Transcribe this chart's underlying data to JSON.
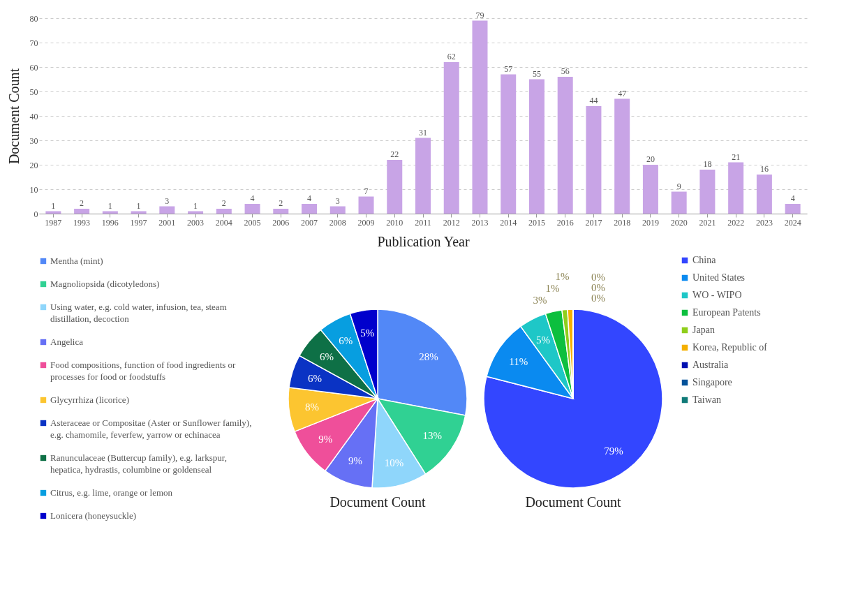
{
  "chart_data": [
    {
      "type": "bar",
      "xlabel": "Publication Year",
      "ylabel": "Document Count",
      "categories": [
        "1987",
        "1993",
        "1996",
        "1997",
        "2001",
        "2003",
        "2004",
        "2005",
        "2006",
        "2007",
        "2008",
        "2009",
        "2010",
        "2011",
        "2012",
        "2013",
        "2014",
        "2015",
        "2016",
        "2017",
        "2018",
        "2019",
        "2020",
        "2021",
        "2022",
        "2023",
        "2024"
      ],
      "values": [
        1,
        2,
        1,
        1,
        3,
        1,
        2,
        4,
        2,
        4,
        3,
        7,
        22,
        31,
        62,
        79,
        57,
        55,
        56,
        44,
        47,
        20,
        9,
        18,
        21,
        16,
        4
      ],
      "color": "#c8a4e6",
      "ylim": [
        0,
        80
      ],
      "yticks": [
        0,
        10,
        20,
        30,
        40,
        50,
        60,
        70,
        80
      ],
      "grid": "y",
      "data_labels": true
    },
    {
      "type": "pie",
      "title": "Document Count",
      "legend": "left",
      "categories": [
        "Mentha (mint)",
        "Magnoliopsida (dicotyledons)",
        "Using water, e.g. cold water, infusion, tea, steam distillation, decoction",
        "Angelica",
        "Food compositions, function of food ingredients or processes for food or foodstuffs",
        "Glycyrrhiza (licorice)",
        "Asteraceae or Compositae (Aster or Sunflower family), e.g. chamomile, feverfew, yarrow or echinacea",
        "Ranunculaceae (Buttercup family), e.g. larkspur, hepatica, hydrastis, columbine or goldenseal",
        "Citrus, e.g. lime, orange or lemon",
        "Lonicera (honeysuckle)"
      ],
      "values": [
        28,
        13,
        10,
        9,
        9,
        8,
        6,
        6,
        6,
        5
      ],
      "value_labels": [
        "28%",
        "13%",
        "10%",
        "9%",
        "9%",
        "8%",
        "6%",
        "6%",
        "6%",
        "5%"
      ],
      "colors": [
        "#5288f7",
        "#30d193",
        "#8fd6fb",
        "#6670f5",
        "#ef4f9a",
        "#fcc530",
        "#0a33c4",
        "#0e7046",
        "#079ee0",
        "#0000cc"
      ]
    },
    {
      "type": "pie",
      "title": "Document Count",
      "legend": "right",
      "categories": [
        "China",
        "United States",
        "WO - WIPO",
        "European Patents",
        "Japan",
        "Korea, Republic of",
        "Australia",
        "Singapore",
        "Taiwan"
      ],
      "values": [
        79,
        11,
        5,
        3,
        1,
        1,
        0,
        0,
        0
      ],
      "value_labels": [
        "79%",
        "11%",
        "5%",
        "3%",
        "1%",
        "1%",
        "0%",
        "0%",
        "0%"
      ],
      "colors": [
        "#3346ff",
        "#0a8af0",
        "#1ec7c7",
        "#0cbf3e",
        "#8fce1b",
        "#f5b000",
        "#0010b0",
        "#03529a",
        "#107a78"
      ]
    }
  ]
}
